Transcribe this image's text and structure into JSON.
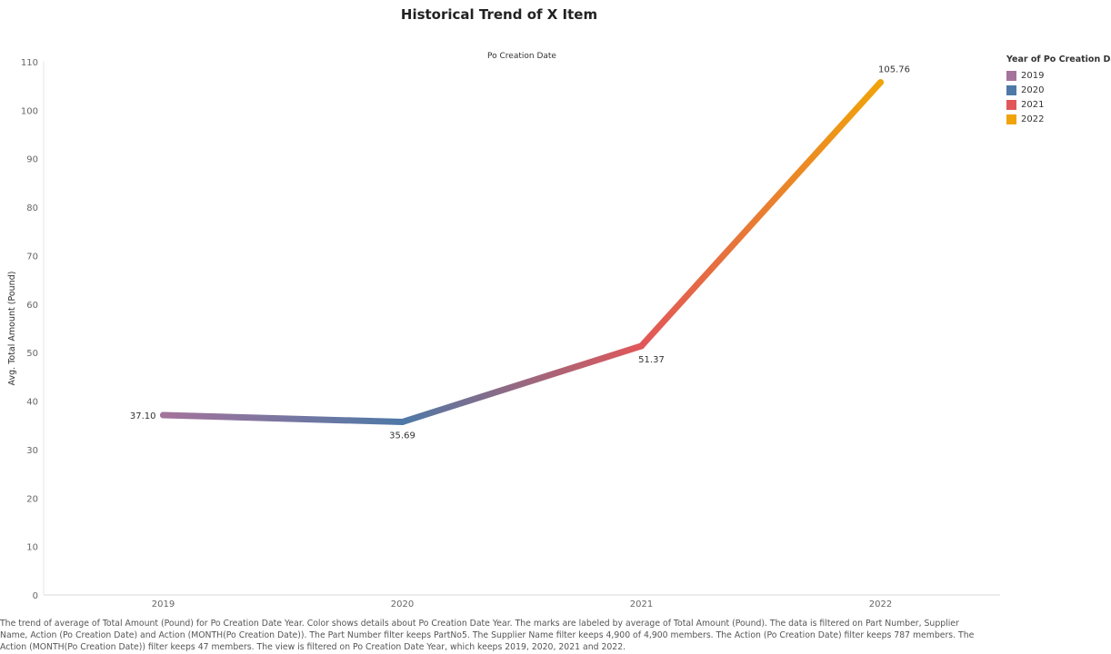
{
  "chart_data": {
    "type": "line",
    "title": "Historical Trend of X Item",
    "header": "Po Creation Date",
    "ylabel": "Avg. Total Amount (Pound)",
    "xlabel": "",
    "categories": [
      "2019",
      "2020",
      "2021",
      "2022"
    ],
    "values": [
      37.1,
      35.69,
      51.37,
      105.76
    ],
    "data_labels": [
      "37.10",
      "35.69",
      "51.37",
      "105.76"
    ],
    "ylim": [
      0,
      110
    ],
    "yticks": [
      0,
      10,
      20,
      30,
      40,
      50,
      60,
      70,
      80,
      90,
      100,
      110
    ],
    "grid": false,
    "legend": {
      "title": "Year of Po Creation Date",
      "placement": "right",
      "items": [
        {
          "label": "2019",
          "color": "#a4739b"
        },
        {
          "label": "2020",
          "color": "#4e79a7"
        },
        {
          "label": "2021",
          "color": "#e15759"
        },
        {
          "label": "2022",
          "color": "#f0a30a"
        }
      ]
    }
  },
  "caption": "The trend of average of Total Amount (Pound) for Po Creation Date Year.  Color shows details about Po Creation Date Year.  The marks are labeled by average of Total Amount (Pound). The data is filtered on Part Number, Supplier Name, Action (Po Creation Date) and Action (MONTH(Po Creation Date)). The Part Number filter keeps PartNo5. The Supplier Name filter keeps 4,900 of 4,900 members. The Action (Po Creation Date) filter keeps 787 members. The Action (MONTH(Po Creation Date)) filter keeps 47 members. The view is filtered on Po Creation Date Year, which keeps 2019, 2020, 2021 and 2022."
}
